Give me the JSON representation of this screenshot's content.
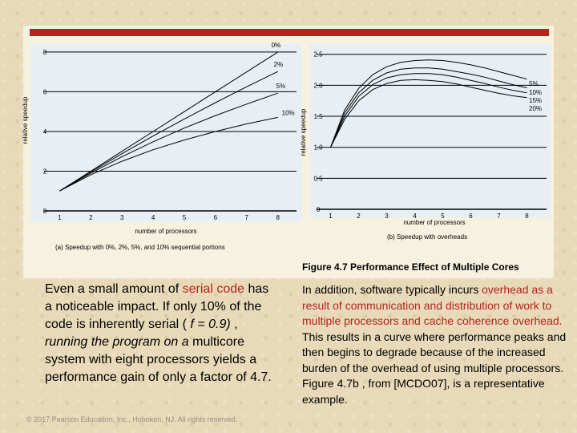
{
  "colors": {
    "accent": "#b5231b",
    "chart_background": "#e7eff4",
    "panel": "#f7f1df"
  },
  "chart_data": [
    {
      "type": "line",
      "ylabel": "relative speedup",
      "xlabel": "number of processors",
      "caption": "(a) Speedup with 0%, 2%, 5%, and 10% sequential portions",
      "x": [
        1,
        2,
        3,
        4,
        5,
        6,
        7,
        8
      ],
      "xlim": [
        0.5,
        8.6
      ],
      "ylim": [
        0,
        8.4
      ],
      "yticks": [
        "0",
        "2",
        "4",
        "6",
        "8"
      ],
      "ytick_values": [
        0,
        2,
        4,
        6,
        8
      ],
      "xticks": [
        "1",
        "2",
        "3",
        "4",
        "5",
        "6",
        "7",
        "8"
      ],
      "series": [
        {
          "name": "0%",
          "values": [
            1,
            2,
            3,
            4,
            5,
            6,
            7,
            8
          ]
        },
        {
          "name": "2%",
          "values": [
            1,
            1.96,
            2.88,
            3.77,
            4.63,
            5.45,
            6.25,
            7.02
          ]
        },
        {
          "name": "5%",
          "values": [
            1,
            1.9,
            2.73,
            3.48,
            4.17,
            4.8,
            5.38,
            5.93
          ]
        },
        {
          "name": "10%",
          "values": [
            1,
            1.82,
            2.5,
            3.08,
            3.57,
            4.0,
            4.38,
            4.71
          ]
        }
      ]
    },
    {
      "type": "line",
      "ylabel": "relative speedup",
      "xlabel": "number of processors",
      "caption": "(b) Speedup with overheads",
      "x": [
        1,
        1.5,
        2,
        2.5,
        3,
        3.5,
        4,
        4.5,
        5,
        5.5,
        6,
        6.5,
        7,
        7.5,
        8
      ],
      "xlim": [
        0.5,
        8.7
      ],
      "ylim": [
        0,
        2.6
      ],
      "yticks": [
        "0",
        "0.5",
        "1.0",
        "1.5",
        "2.0",
        "2.5"
      ],
      "ytick_values": [
        0,
        0.5,
        1.0,
        1.5,
        2.0,
        2.5
      ],
      "xticks": [
        "1",
        "2",
        "3",
        "4",
        "5",
        "6",
        "7",
        "8"
      ],
      "series": [
        {
          "name": "5%",
          "values": [
            1.0,
            1.6,
            1.95,
            2.17,
            2.3,
            2.37,
            2.4,
            2.41,
            2.4,
            2.37,
            2.33,
            2.28,
            2.22,
            2.16,
            2.1
          ]
        },
        {
          "name": "10%",
          "values": [
            1.0,
            1.55,
            1.88,
            2.08,
            2.2,
            2.26,
            2.28,
            2.28,
            2.26,
            2.22,
            2.18,
            2.13,
            2.07,
            2.01,
            1.96
          ]
        },
        {
          "name": "15%",
          "values": [
            1.0,
            1.5,
            1.82,
            2.01,
            2.12,
            2.17,
            2.19,
            2.19,
            2.17,
            2.13,
            2.08,
            2.03,
            1.97,
            1.92,
            1.88
          ]
        },
        {
          "name": "20%",
          "values": [
            1.0,
            1.45,
            1.75,
            1.93,
            2.03,
            2.08,
            2.09,
            2.08,
            2.06,
            2.02,
            1.97,
            1.92,
            1.87,
            1.83,
            1.8
          ]
        }
      ]
    }
  ],
  "figure_caption": "Figure 4.7 Performance Effect of Multiple Cores",
  "left_text": {
    "l1_pre": "Even a small amount of ",
    "l1_hl": "serial code",
    "l1_post": " has",
    "l2": "a noticeable impact. If only 10% of the",
    "l3_pre": "code is inherently serial ( ",
    "l3_formula": "f = 0.9)",
    "l3_post": " ,",
    "l4_italic": "running the program on a",
    "l4_post": " multicore",
    "l5": "system with eight processors yields a",
    "l6": "performance gain of only a factor of 4.7."
  },
  "right_text": {
    "p1": "In addition, software typically incurs ",
    "hl1": "overhead as a result of communication and distribution of work to multiple processors and cache coherence overhead.",
    "p2": " This results in a curve where performance peaks and then begins to degrade because of the increased burden of the overhead of using multiple processors. Figure 4.7b , from [MCDO07], is a representative example."
  },
  "copyright": "© 2017 Pearson Education, Inc., Hoboken, NJ. All rights reserved."
}
